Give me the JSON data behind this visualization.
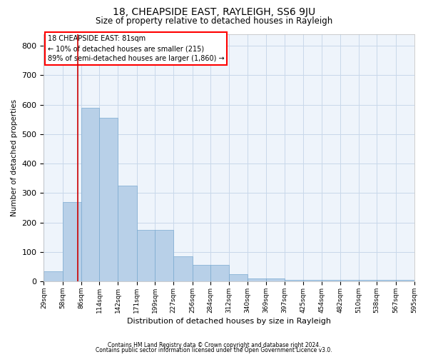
{
  "title": "18, CHEAPSIDE EAST, RAYLEIGH, SS6 9JU",
  "subtitle": "Size of property relative to detached houses in Rayleigh",
  "xlabel": "Distribution of detached houses by size in Rayleigh",
  "ylabel": "Number of detached properties",
  "footnote1": "Contains HM Land Registry data © Crown copyright and database right 2024.",
  "footnote2": "Contains public sector information licensed under the Open Government Licence v3.0.",
  "annotation_line1": "18 CHEAPSIDE EAST: 81sqm",
  "annotation_line2": "← 10% of detached houses are smaller (215)",
  "annotation_line3": "89% of semi-detached houses are larger (1,860) →",
  "bar_color": "#b8d0e8",
  "bar_edge_color": "#7aaad0",
  "grid_color": "#c8d8ea",
  "background_color": "#eef4fb",
  "red_line_color": "#cc0000",
  "red_line_x": 81,
  "bins": [
    29,
    58,
    86,
    114,
    142,
    171,
    199,
    227,
    256,
    284,
    312,
    340,
    369,
    397,
    425,
    454,
    482,
    510,
    538,
    567,
    595
  ],
  "values": [
    35,
    270,
    590,
    555,
    325,
    175,
    175,
    85,
    55,
    55,
    25,
    10,
    10,
    5,
    5,
    5,
    5,
    5,
    5,
    5
  ],
  "ylim": [
    0,
    840
  ],
  "yticks": [
    0,
    100,
    200,
    300,
    400,
    500,
    600,
    700,
    800
  ]
}
